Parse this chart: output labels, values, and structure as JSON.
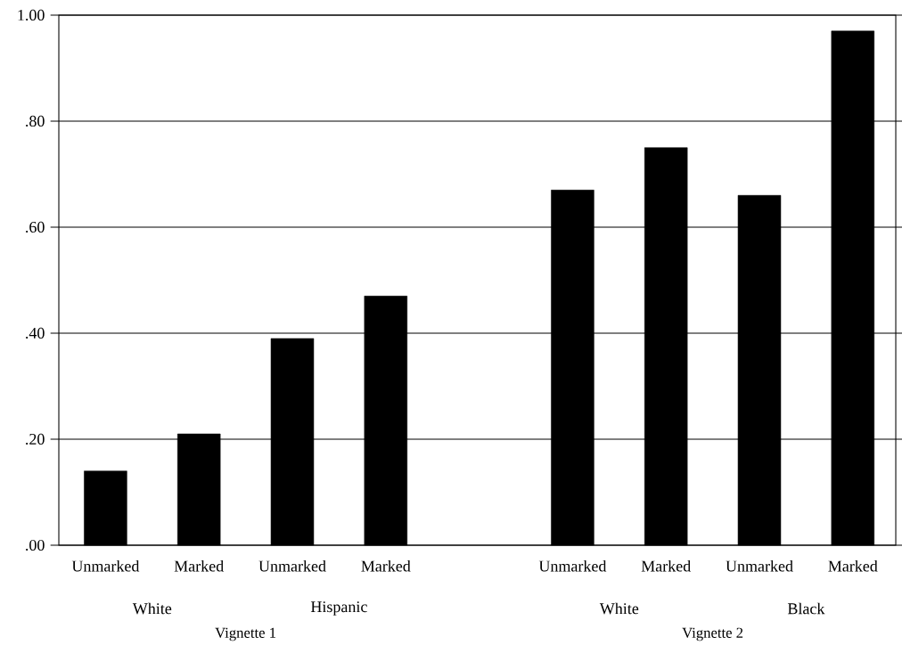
{
  "chart_data": {
    "type": "bar",
    "categories": [
      "Unmarked",
      "Marked",
      "Unmarked",
      "Marked",
      null,
      "Unmarked",
      "Marked",
      "Unmarked",
      "Marked"
    ],
    "values": [
      0.14,
      0.21,
      0.39,
      0.47,
      null,
      0.67,
      0.75,
      0.66,
      0.97
    ],
    "color": "#000000",
    "ylim": [
      0,
      1
    ],
    "yticks": [
      {
        "value": 0,
        "label": ".00"
      },
      {
        "value": 0.2,
        "label": ".20"
      },
      {
        "value": 0.4,
        "label": ".40"
      },
      {
        "value": 0.6,
        "label": ".60"
      },
      {
        "value": 0.8,
        "label": ".80"
      },
      {
        "value": 1,
        "label": "1.00"
      }
    ],
    "grid": "y",
    "annotations": [
      "White",
      "Hispanic",
      "White",
      "Black",
      "Vignette 1",
      "Vignette 2"
    ]
  }
}
